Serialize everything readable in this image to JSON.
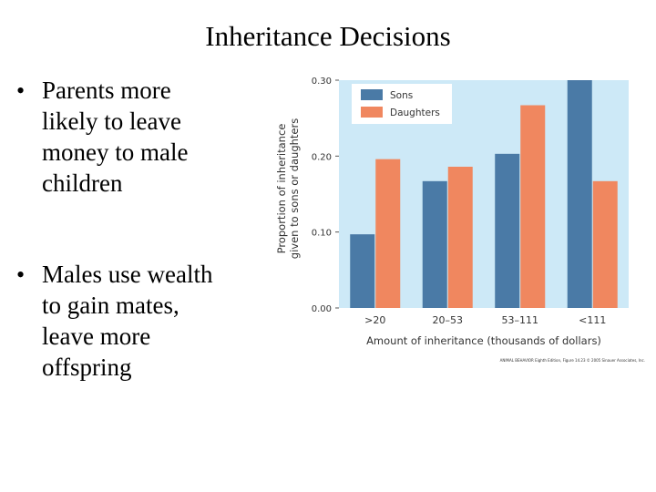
{
  "header": {
    "title": "Inheritance Decisions"
  },
  "bullets": [
    [
      "Parents more",
      "likely to leave",
      "money to male",
      "children"
    ],
    [
      "Males use wealth",
      "to gain mates,",
      "leave more",
      "offspring"
    ]
  ],
  "chart_data": {
    "type": "bar",
    "categories": [
      ">20",
      "20–53",
      "53–111",
      "<111"
    ],
    "series": [
      {
        "name": "Sons",
        "color": "#4a7aa6",
        "values": [
          0.097,
          0.167,
          0.203,
          0.3
        ]
      },
      {
        "name": "Daughters",
        "color": "#f0875f",
        "values": [
          0.196,
          0.186,
          0.267,
          0.167
        ]
      }
    ],
    "ylim": [
      0,
      0.3
    ],
    "yticks": [
      {
        "value": 0,
        "label": "0.00"
      },
      {
        "value": 0.1,
        "label": "0.10"
      },
      {
        "value": 0.2,
        "label": "0.20"
      },
      {
        "value": 0.3,
        "label": "0.30"
      }
    ],
    "ylabel": [
      "Proportion of inheritance",
      "given to sons or daughters"
    ],
    "xlabel": "Amount of inheritance (thousands of dollars)",
    "background": "#cde9f7",
    "legend": "upper left",
    "caption": "ANIMAL BEHAVIOR Eighth Edition, Figure 14.23 © 2005 Sinauer Associates, Inc."
  }
}
